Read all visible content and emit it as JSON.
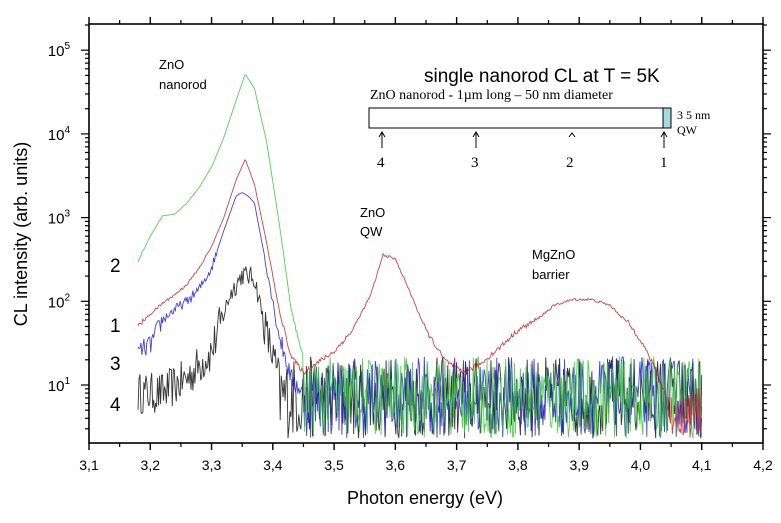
{
  "chart_data": {
    "type": "line",
    "title": "single nanorod CL at T = 5K",
    "xlabel": "Photon energy  (eV)",
    "ylabel": "CL intensity  (arb. units)",
    "xlim": [
      3.1,
      4.2
    ],
    "ylim": [
      2,
      200000
    ],
    "yscale": "log",
    "x_ticks": [
      "3,1",
      "3,2",
      "3,3",
      "3,4",
      "3,5",
      "3,6",
      "3,7",
      "3,8",
      "3,9",
      "4,0",
      "4,1",
      "4,2"
    ],
    "x_tick_values": [
      3.1,
      3.2,
      3.3,
      3.4,
      3.5,
      3.6,
      3.7,
      3.8,
      3.9,
      4.0,
      4.1,
      4.2
    ],
    "y_ticks": [
      {
        "value": 10,
        "base": "10",
        "exp": "1"
      },
      {
        "value": 100,
        "base": "10",
        "exp": "2"
      },
      {
        "value": 1000,
        "base": "10",
        "exp": "3"
      },
      {
        "value": 10000,
        "base": "10",
        "exp": "4"
      },
      {
        "value": 100000,
        "base": "10",
        "exp": "5"
      }
    ],
    "grid": false,
    "series": [
      {
        "name": "position 2 (green)",
        "color": "#33cc33",
        "x": [
          3.18,
          3.2,
          3.22,
          3.24,
          3.26,
          3.28,
          3.3,
          3.32,
          3.34,
          3.355,
          3.37,
          3.39,
          3.41,
          3.43,
          3.45
        ],
        "y": [
          300,
          600,
          1050,
          1100,
          1500,
          2300,
          4000,
          9000,
          25000,
          52000,
          35000,
          8000,
          900,
          80,
          20
        ]
      },
      {
        "name": "position 1 (red)",
        "color": "#cc2222",
        "x": [
          3.18,
          3.2,
          3.22,
          3.24,
          3.26,
          3.28,
          3.3,
          3.32,
          3.34,
          3.355,
          3.37,
          3.39,
          3.41,
          3.43,
          3.45,
          3.47,
          3.5,
          3.53,
          3.56,
          3.58,
          3.6,
          3.62,
          3.65,
          3.68,
          3.71,
          3.74,
          3.77,
          3.8,
          3.83,
          3.86,
          3.89,
          3.92,
          3.95,
          3.98,
          4.0,
          4.02,
          4.04,
          4.05
        ],
        "y": [
          50,
          70,
          95,
          120,
          160,
          250,
          450,
          1000,
          2800,
          5000,
          2500,
          500,
          80,
          22,
          14,
          18,
          25,
          45,
          120,
          360,
          320,
          150,
          45,
          20,
          14,
          18,
          28,
          45,
          60,
          90,
          105,
          105,
          90,
          55,
          35,
          18,
          8,
          3
        ]
      },
      {
        "name": "position 3 (blue)",
        "color": "#2222cc",
        "x": [
          3.18,
          3.2,
          3.22,
          3.24,
          3.26,
          3.28,
          3.3,
          3.32,
          3.34,
          3.35,
          3.36,
          3.37,
          3.39,
          3.41,
          3.43,
          3.45
        ],
        "y": [
          25,
          30,
          60,
          80,
          100,
          140,
          250,
          700,
          1800,
          2000,
          1800,
          1500,
          250,
          40,
          12,
          8
        ]
      },
      {
        "name": "position 4 (black)",
        "color": "#111111",
        "x": [
          3.18,
          3.22,
          3.26,
          3.3,
          3.33,
          3.35,
          3.37,
          3.39,
          3.41
        ],
        "y": [
          8,
          8,
          12,
          25,
          120,
          210,
          190,
          40,
          12
        ]
      }
    ],
    "noise_floor": {
      "range": [
        3.4,
        4.1
      ],
      "min": 2.3,
      "max": 22
    },
    "curve_labels": [
      {
        "text": "2",
        "series": "green"
      },
      {
        "text": "1",
        "series": "red"
      },
      {
        "text": "3",
        "series": "blue"
      },
      {
        "text": "4",
        "series": "black"
      }
    ],
    "annotations": [
      {
        "line1": "ZnO",
        "line2": "nanorod"
      },
      {
        "line1": "ZnO",
        "line2": "QW"
      },
      {
        "line1": "MgZnO",
        "line2": "barrier"
      }
    ]
  },
  "inset": {
    "title": "ZnO nanorod - 1µm long – 50 nm diameter",
    "qw_label_line1": "3 5 nm",
    "qw_label_line2": "QW",
    "qw_color": "#a8d8e0",
    "positions": [
      "4",
      "3",
      "2",
      "1"
    ]
  }
}
